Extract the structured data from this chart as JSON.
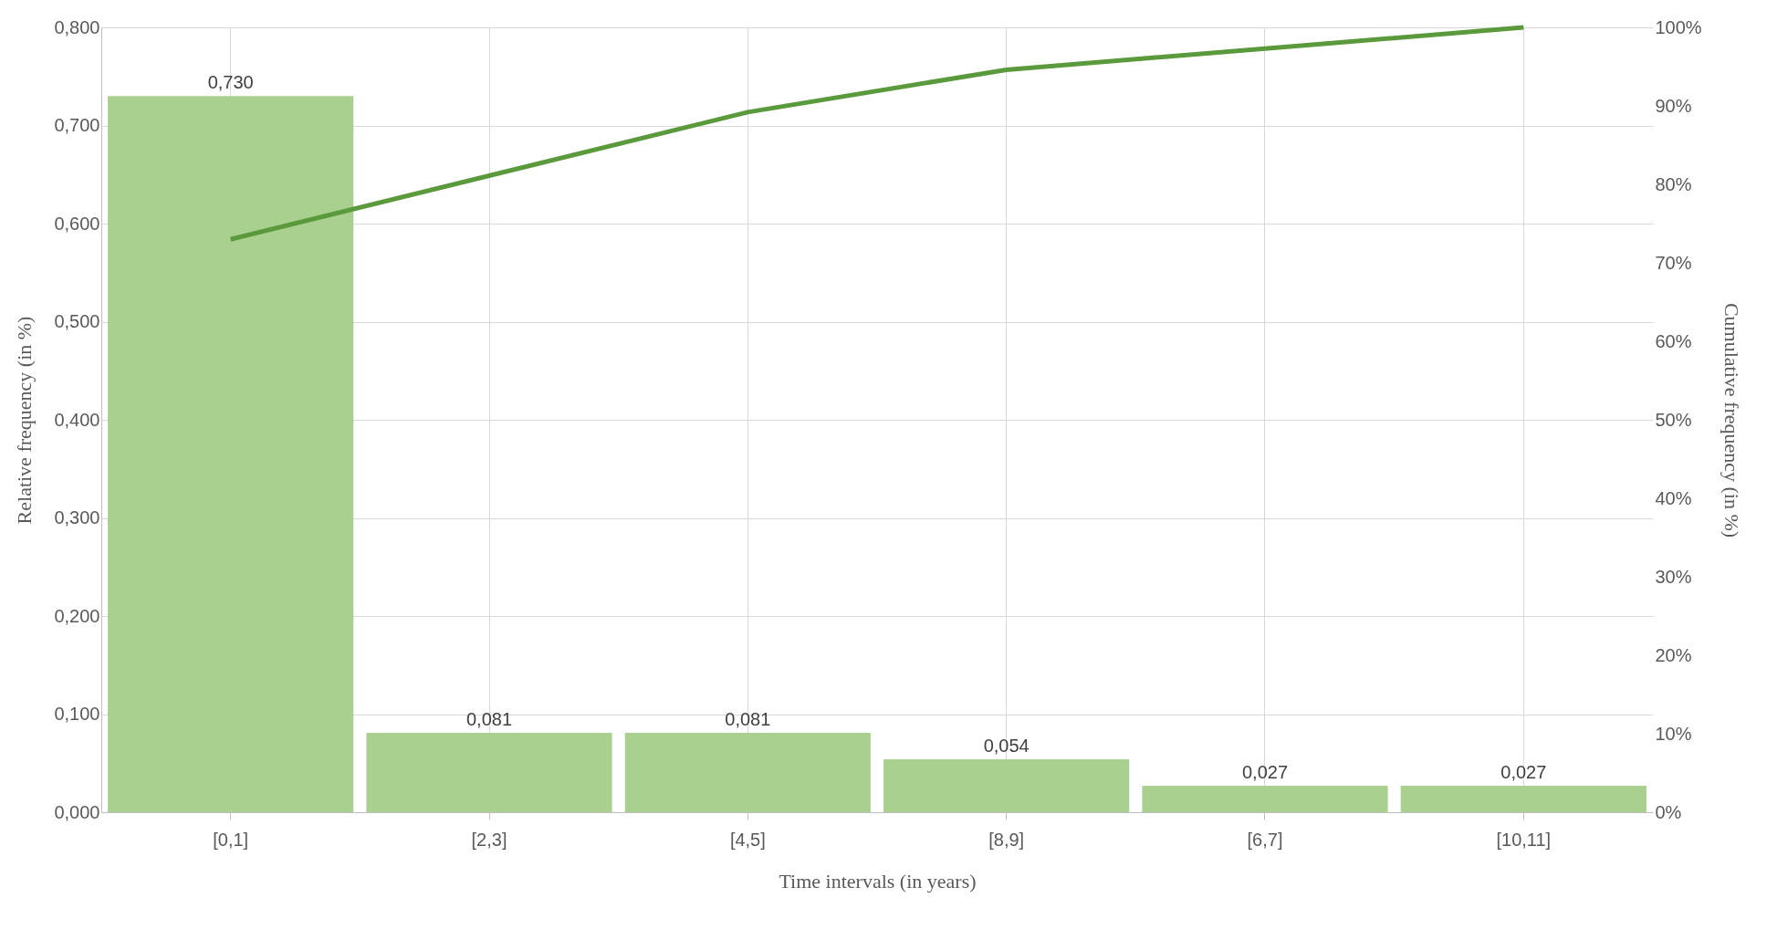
{
  "chart_data": {
    "type": "bar",
    "xlabel": "Time intervals  (in years)",
    "ylabel": "Relative  frequency  (in %)",
    "y2label": "Cumulative  frequency  (in %)",
    "categories": [
      "[0,1]",
      "[2,3]",
      "[4,5]",
      "[8,9]",
      "[6,7]",
      "[10,11]"
    ],
    "series": [
      {
        "color": "#a9d08e",
        "values": [
          0.73,
          0.081,
          0.081,
          0.054,
          0.027,
          0.027
        ],
        "value_labels": [
          "0,730",
          "0,081",
          "0,081",
          "0,054",
          "0,027",
          "0,027"
        ]
      },
      {
        "type": "line",
        "axis": "y2",
        "color": "#5b9a3c",
        "values": [
          73.0,
          81.1,
          89.2,
          94.6,
          97.3,
          100
        ]
      }
    ],
    "ylim": [
      0,
      0.8
    ],
    "yticks": [
      {
        "value": 0,
        "label": "0,000"
      },
      {
        "value": 0.1,
        "label": "0,100"
      },
      {
        "value": 0.2,
        "label": "0,200"
      },
      {
        "value": 0.3,
        "label": "0,300"
      },
      {
        "value": 0.4,
        "label": "0,400"
      },
      {
        "value": 0.5,
        "label": "0,500"
      },
      {
        "value": 0.6,
        "label": "0,600"
      },
      {
        "value": 0.7,
        "label": "0,700"
      },
      {
        "value": 0.8,
        "label": "0,800"
      }
    ],
    "y2lim": [
      0,
      100
    ],
    "y2ticks": [
      {
        "value": 0,
        "label": "0%"
      },
      {
        "value": 10,
        "label": "10%"
      },
      {
        "value": 20,
        "label": "20%"
      },
      {
        "value": 30,
        "label": "30%"
      },
      {
        "value": 40,
        "label": "40%"
      },
      {
        "value": 50,
        "label": "50%"
      },
      {
        "value": 60,
        "label": "60%"
      },
      {
        "value": 70,
        "label": "70%"
      },
      {
        "value": 80,
        "label": "80%"
      },
      {
        "value": 90,
        "label": "90%"
      },
      {
        "value": 100,
        "label": "100%"
      }
    ],
    "grid": true,
    "legend": false,
    "marker": "none",
    "line_style": "solid"
  }
}
